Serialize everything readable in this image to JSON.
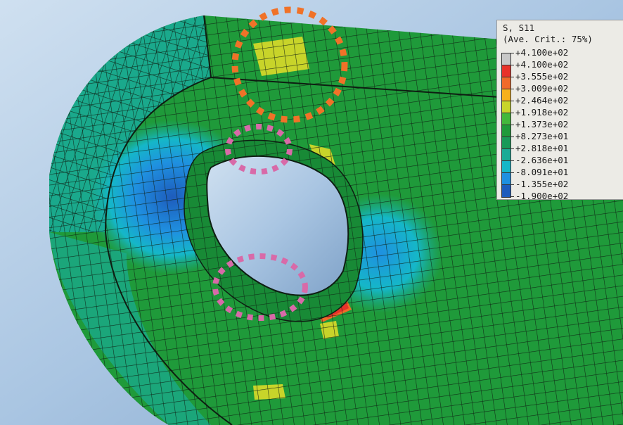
{
  "legend": {
    "title": "S, S11",
    "subtitle": "(Ave. Crit.: 75%)",
    "levels": [
      {
        "label": "+4.100e+02",
        "color": "#c8c8c8"
      },
      {
        "label": "+4.100e+02",
        "color": "#e8322a"
      },
      {
        "label": "+3.555e+02",
        "color": "#f06a2a"
      },
      {
        "label": "+3.009e+02",
        "color": "#f6b01c"
      },
      {
        "label": "+2.464e+02",
        "color": "#c8d42a"
      },
      {
        "label": "+1.918e+02",
        "color": "#43b83c"
      },
      {
        "label": "+1.373e+02",
        "color": "#1f9a3a"
      },
      {
        "label": "+8.273e+01",
        "color": "#189a58"
      },
      {
        "label": "+2.818e+01",
        "color": "#1aab96"
      },
      {
        "label": "-2.636e+01",
        "color": "#15b7c8"
      },
      {
        "label": "-8.091e+01",
        "color": "#1f90e0"
      },
      {
        "label": "-1.355e+02",
        "color": "#1e5cbc"
      },
      {
        "label": "-1.900e+02",
        "color": ""
      }
    ]
  },
  "colors": {
    "background": "#a9c5e2",
    "mesh_green": "#1f9a3a",
    "mesh_lines": "#0e1e12",
    "highlight_orange": "#f07228",
    "highlight_pink": "#d86aa8"
  }
}
